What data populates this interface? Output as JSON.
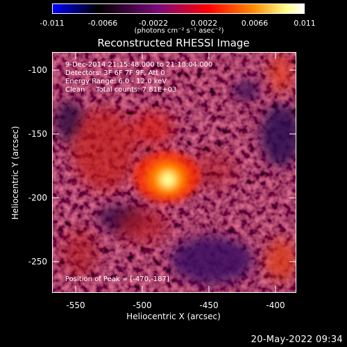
{
  "colorbar": {
    "ticks": [
      "-0.011",
      "-0.0066",
      "-0.0022",
      "0.0022",
      "0.0066",
      "0.011"
    ],
    "unit": "(photons cm⁻² s⁻¹ asec⁻²)",
    "colormap": [
      "#0000ff",
      "#000000",
      "#7a0a7a",
      "#ff0000",
      "#ff8c00",
      "#ffff8c",
      "#ffffff"
    ]
  },
  "title": "Reconstructed RHESSI Image",
  "info": {
    "time": "9-Dec-2014 21:15:48.000 to 21:18:04.000",
    "detectors": "Detectors: 3F 6F 7F 9F, Att 0",
    "energy": "Energy Range: 6.0 - 12.0 keV",
    "clean": "Clean     Total counts: 7.81E+03"
  },
  "peak_label": "Position of Peak = [-470,-187]",
  "axes": {
    "xlabel": "Heliocentric X (arcsec)",
    "ylabel": "Heliocentric Y (arcsec)",
    "xticks": [
      "-550",
      "-500",
      "-450",
      "-400"
    ],
    "yticks": [
      "-100",
      "-150",
      "-200",
      "-250"
    ]
  },
  "timestamp": "20-May-2022 09:34"
}
